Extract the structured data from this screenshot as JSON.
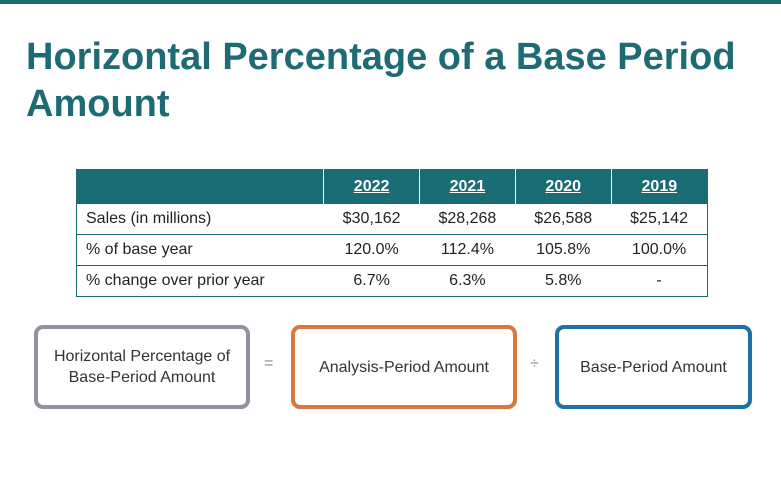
{
  "title": "Horizontal Percentage of a Base Period Amount",
  "table": {
    "headers": [
      "",
      "2022",
      "2021",
      "2020",
      "2019"
    ],
    "rows": [
      {
        "label": "Sales (in millions)",
        "values": [
          "$30,162",
          "$28,268",
          "$26,588",
          "$25,142"
        ]
      },
      {
        "label": "% of base year",
        "values": [
          "120.0%",
          "112.4%",
          "105.8%",
          "100.0%"
        ]
      },
      {
        "label": "% change over prior year",
        "values": [
          "6.7%",
          "6.3%",
          "5.8%",
          "-"
        ]
      }
    ]
  },
  "formula": {
    "left_box": "Horizontal Percentage of Base-Period Amount",
    "equals": "=",
    "middle_box": "Analysis-Period Amount",
    "divide": "÷",
    "right_box": "Base-Period Amount"
  },
  "colors": {
    "accent": "#1e6b73",
    "gray_box": "#8e939e",
    "orange_box": "#d9783e",
    "blue_box": "#1f6fa8"
  }
}
